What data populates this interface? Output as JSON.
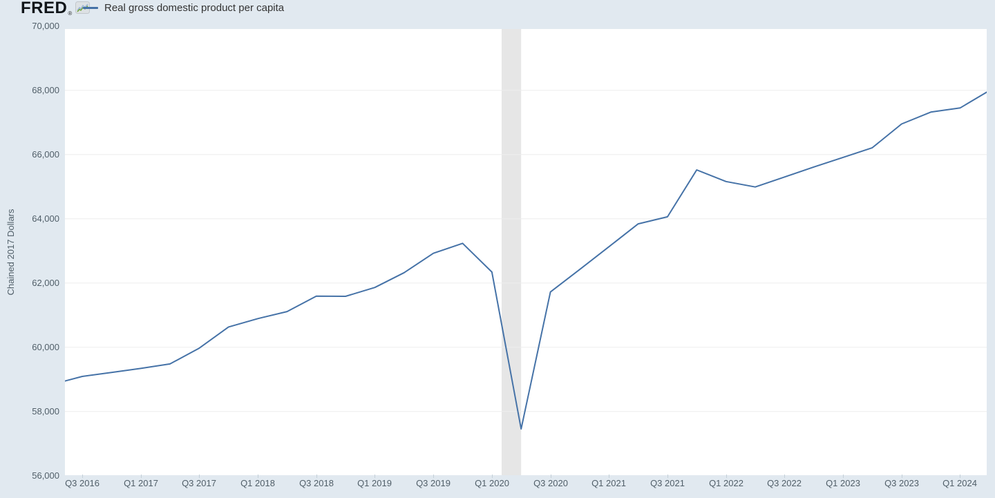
{
  "colors": {
    "background": "#e1e9f0",
    "plot_background": "#ffffff",
    "line": "#4572a7",
    "gridline": "#ededed",
    "recession_band": "#e6e6e6",
    "axis_text": "#505e68",
    "legend_text": "#333333",
    "logo_text": "#101519",
    "badge_green": "#72a53a",
    "badge_blue": "#9ab4d6"
  },
  "header": {
    "logo_text": "FRED",
    "registered_mark": "®",
    "logo_badge_icon": "sparkline-chart-icon",
    "legend_label": "Real gross domestic product per capita"
  },
  "chart_data": {
    "type": "line",
    "title": "Real gross domestic product per capita",
    "ylabel": "Chained 2017 Dollars",
    "ylim": [
      56000,
      70000
    ],
    "grid": "horizontal-only",
    "legend_position": "top-left",
    "y_ticks": [
      70000,
      68000,
      66000,
      64000,
      62000,
      60000,
      58000,
      56000
    ],
    "y_tick_labels": [
      "70,000",
      "68,000",
      "66,000",
      "64,000",
      "62,000",
      "60,000",
      "58,000",
      "56,000"
    ],
    "x_tick_labels": [
      "Q3 2016",
      "Q1 2017",
      "Q3 2017",
      "Q1 2018",
      "Q3 2018",
      "Q1 2019",
      "Q3 2019",
      "Q1 2020",
      "Q3 2020",
      "Q1 2021",
      "Q3 2021",
      "Q1 2022",
      "Q3 2022",
      "Q1 2023",
      "Q3 2023",
      "Q1 2024"
    ],
    "series": [
      {
        "name": "Real gross domestic product per capita",
        "color": "#4572a7",
        "quarters": [
          "Q2 2016",
          "Q3 2016",
          "Q4 2016",
          "Q1 2017",
          "Q2 2017",
          "Q3 2017",
          "Q4 2017",
          "Q1 2018",
          "Q2 2018",
          "Q3 2018",
          "Q4 2018",
          "Q1 2019",
          "Q2 2019",
          "Q3 2019",
          "Q4 2019",
          "Q1 2020",
          "Q2 2020",
          "Q3 2020",
          "Q4 2020",
          "Q1 2021",
          "Q2 2021",
          "Q3 2021",
          "Q4 2021",
          "Q1 2022",
          "Q2 2022",
          "Q3 2022",
          "Q4 2022",
          "Q1 2023",
          "Q2 2023",
          "Q3 2023",
          "Q4 2023",
          "Q1 2024",
          "Q2 2024"
        ],
        "values": [
          58850,
          59090,
          59215,
          59340,
          59480,
          59970,
          60630,
          60890,
          61110,
          61590,
          61585,
          61860,
          62320,
          62925,
          63235,
          62340,
          57455,
          61720,
          62420,
          63130,
          63840,
          64060,
          65520,
          65160,
          64990,
          65300,
          65610,
          65910,
          66210,
          66950,
          67320,
          67450,
          67990
        ]
      }
    ],
    "recession_shading": {
      "name": "recession-band",
      "color": "#e6e6e6",
      "from_quarter_index": 15.333,
      "to_quarter_index": 16
    }
  }
}
